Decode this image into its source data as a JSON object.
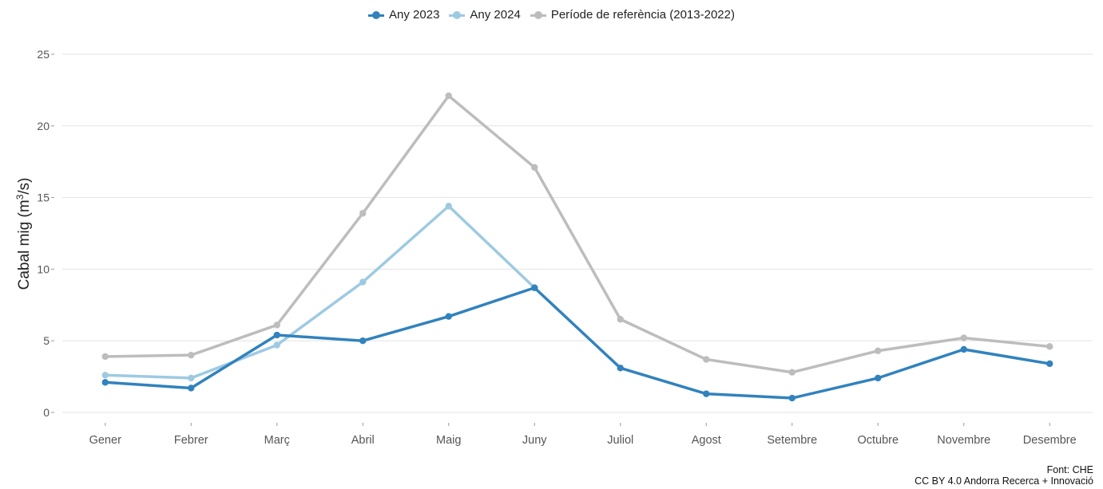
{
  "legend": [
    {
      "label": "Any 2023",
      "color": "#3182bd"
    },
    {
      "label": "Any 2024",
      "color": "#9ecae1"
    },
    {
      "label": "Període de referència (2013-2022)",
      "color": "#bdbdbd"
    }
  ],
  "caption": {
    "source": "Font: CHE",
    "license": "CC BY 4.0 Andorra Recerca + Innovació"
  },
  "chart_data": {
    "type": "line",
    "categories": [
      "Gener",
      "Febrer",
      "Març",
      "Abril",
      "Maig",
      "Juny",
      "Juliol",
      "Agost",
      "Setembre",
      "Octubre",
      "Novembre",
      "Desembre"
    ],
    "series": [
      {
        "name": "Any 2023",
        "color": "#3182bd",
        "values": [
          2.1,
          1.7,
          5.4,
          5.0,
          6.7,
          8.7,
          3.1,
          1.3,
          1.0,
          2.4,
          4.4,
          3.4
        ]
      },
      {
        "name": "Any 2024",
        "color": "#9ecae1",
        "values": [
          2.6,
          2.4,
          4.7,
          9.1,
          14.4,
          8.7,
          null,
          null,
          null,
          null,
          null,
          null
        ]
      },
      {
        "name": "Període de referència (2013-2022)",
        "color": "#bdbdbd",
        "values": [
          3.9,
          4.0,
          6.1,
          13.9,
          22.1,
          17.1,
          6.5,
          3.7,
          2.8,
          4.3,
          5.2,
          4.6
        ]
      }
    ],
    "ylabel": "Cabal mig (m3/s)",
    "ylabel_main": "Cabal mig (m",
    "ylabel_sup": "3",
    "ylabel_tail": "/s)",
    "xlabel": "",
    "ylim": [
      0,
      25
    ],
    "yticks": [
      0,
      5,
      10,
      15,
      20,
      25
    ],
    "grid": "horizontal",
    "legend_position": "top"
  }
}
